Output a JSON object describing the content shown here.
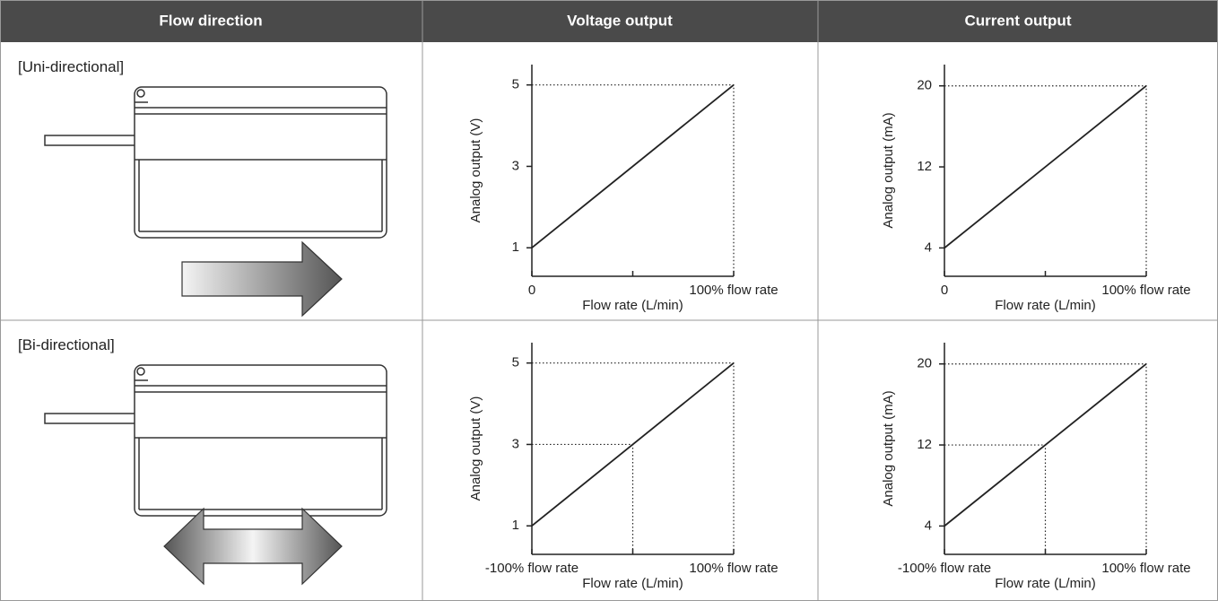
{
  "header": {
    "columns": [
      "Flow direction",
      "Voltage output",
      "Current output"
    ]
  },
  "rows": [
    {
      "label": "[Uni-directional]",
      "charts": [
        {
          "type": "line",
          "ylabel": "Analog output (V)",
          "xlabel": "Flow rate (L/min)",
          "x": [
            0,
            100
          ],
          "values": [
            1,
            5
          ],
          "xlim": [
            0,
            100
          ],
          "ylim": [
            0.3,
            5.5
          ],
          "yticks": [
            1,
            3,
            5
          ],
          "xticks": [
            0,
            {
              "value": 100,
              "label": "100% flow rate"
            }
          ],
          "xminorticks": [
            50
          ],
          "guides": [
            {
              "x": 100,
              "y": 5
            }
          ],
          "color": "#222222"
        },
        {
          "type": "line",
          "ylabel": "Analog output (mA)",
          "xlabel": "Flow rate (L/min)",
          "x": [
            0,
            100
          ],
          "values": [
            4,
            20
          ],
          "xlim": [
            0,
            100
          ],
          "ylim": [
            1.2,
            22.1
          ],
          "yticks": [
            4,
            12,
            20
          ],
          "xticks": [
            0,
            {
              "value": 100,
              "label": "100% flow rate"
            }
          ],
          "xminorticks": [
            50
          ],
          "guides": [
            {
              "x": 100,
              "y": 20
            }
          ],
          "color": "#222222"
        }
      ]
    },
    {
      "label": "[Bi-directional]",
      "charts": [
        {
          "type": "line",
          "ylabel": "Analog output (V)",
          "xlabel": "Flow rate (L/min)",
          "x": [
            -100,
            100
          ],
          "values": [
            1,
            5
          ],
          "xlim": [
            -100,
            100
          ],
          "ylim": [
            0.3,
            5.5
          ],
          "yticks": [
            1,
            3,
            5
          ],
          "xticks": [
            {
              "value": -100,
              "label": "-100% flow rate"
            },
            {
              "value": 100,
              "label": "100% flow rate"
            }
          ],
          "xminorticks": [
            0
          ],
          "guides": [
            {
              "x": 0,
              "y": 3
            },
            {
              "x": 100,
              "y": 5
            }
          ],
          "color": "#222222"
        },
        {
          "type": "line",
          "ylabel": "Analog output (mA)",
          "xlabel": "Flow rate (L/min)",
          "x": [
            -100,
            100
          ],
          "values": [
            4,
            20
          ],
          "xlim": [
            -100,
            100
          ],
          "ylim": [
            1.2,
            22.1
          ],
          "yticks": [
            4,
            12,
            20
          ],
          "xticks": [
            {
              "value": -100,
              "label": "-100% flow rate"
            },
            {
              "value": 100,
              "label": "100% flow rate"
            }
          ],
          "xminorticks": [
            0
          ],
          "guides": [
            {
              "x": 0,
              "y": 12
            },
            {
              "x": 100,
              "y": 20
            }
          ],
          "color": "#222222"
        }
      ]
    }
  ]
}
